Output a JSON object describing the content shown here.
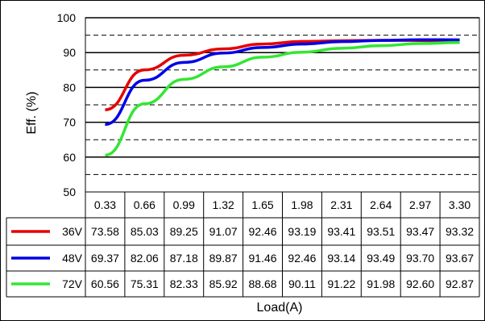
{
  "chart_data": {
    "type": "line",
    "title": "",
    "xlabel": "Load(A)",
    "ylabel": "Eff. (%)",
    "ylim": [
      50,
      100
    ],
    "yticks": [
      50,
      60,
      70,
      80,
      90,
      100
    ],
    "grid": "solid major lines at 10% steps, dashed minor lines at 5% offsets",
    "legend": "embedded in data table rows below the plot",
    "categories": [
      "0.33",
      "0.66",
      "0.99",
      "1.32",
      "1.65",
      "1.98",
      "2.31",
      "2.64",
      "2.97",
      "3.30"
    ],
    "x": [
      0.33,
      0.66,
      0.99,
      1.32,
      1.65,
      1.98,
      2.31,
      2.64,
      2.97,
      3.3
    ],
    "series": [
      {
        "name": "36V",
        "color": "#e60000",
        "values": [
          73.58,
          85.03,
          89.25,
          91.07,
          92.46,
          93.19,
          93.41,
          93.51,
          93.47,
          93.32
        ],
        "labels": [
          "73.58",
          "85.03",
          "89.25",
          "91.07",
          "92.46",
          "93.19",
          "93.41",
          "93.51",
          "93.47",
          "93.32"
        ]
      },
      {
        "name": "48V",
        "color": "#0000e6",
        "values": [
          69.37,
          82.06,
          87.18,
          89.87,
          91.46,
          92.46,
          93.14,
          93.49,
          93.7,
          93.67
        ],
        "labels": [
          "69.37",
          "82.06",
          "87.18",
          "89.87",
          "91.46",
          "92.46",
          "93.14",
          "93.49",
          "93.70",
          "93.67"
        ]
      },
      {
        "name": "72V",
        "color": "#33e633",
        "values": [
          60.56,
          75.31,
          82.33,
          85.92,
          88.68,
          90.11,
          91.22,
          91.98,
          92.6,
          92.87
        ],
        "labels": [
          "60.56",
          "75.31",
          "82.33",
          "85.92",
          "88.68",
          "90.11",
          "91.22",
          "91.98",
          "92.60",
          "92.87"
        ]
      }
    ]
  }
}
